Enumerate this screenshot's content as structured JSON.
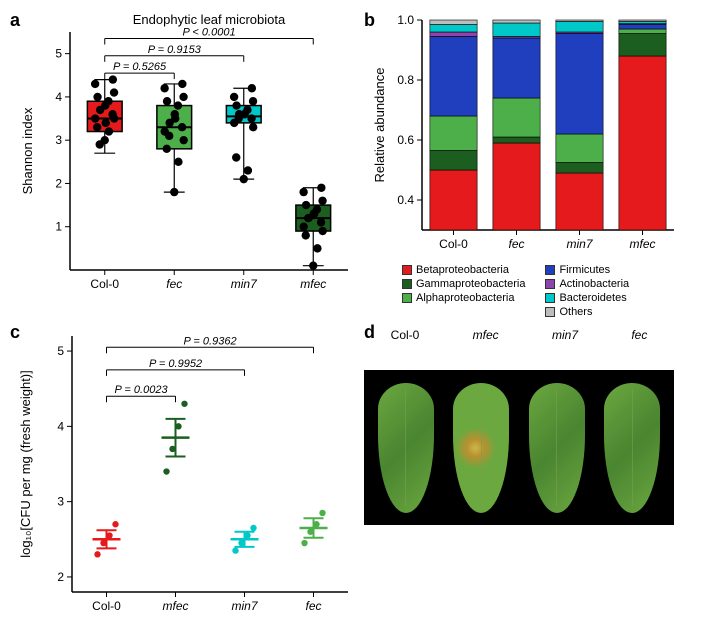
{
  "panel_a": {
    "label": "a",
    "title": "Endophytic leaf microbiota",
    "ylabel": "Shannon index",
    "ylim": [
      0,
      5.5
    ],
    "yticks": [
      1,
      2,
      3,
      4,
      5
    ],
    "categories": [
      "Col-0",
      "fec",
      "min7",
      "mfec"
    ],
    "italic_categories": [
      false,
      true,
      true,
      true
    ],
    "boxes": [
      {
        "q1": 3.2,
        "median": 3.5,
        "q3": 3.9,
        "wlow": 2.7,
        "whigh": 4.4,
        "fill": "#e41a1c"
      },
      {
        "q1": 2.8,
        "median": 3.3,
        "q3": 3.8,
        "wlow": 1.8,
        "whigh": 4.3,
        "fill": "#4daf4a"
      },
      {
        "q1": 3.4,
        "median": 3.55,
        "q3": 3.8,
        "wlow": 2.1,
        "whigh": 4.2,
        "fill": "#00c8c8"
      },
      {
        "q1": 0.9,
        "median": 1.2,
        "q3": 1.5,
        "wlow": 0.1,
        "whigh": 1.9,
        "fill": "#1b5e20"
      }
    ],
    "jitter": [
      [
        3.0,
        3.2,
        3.3,
        3.5,
        3.5,
        3.6,
        3.7,
        3.8,
        3.9,
        4.0,
        4.1,
        4.3,
        4.4,
        2.9,
        3.4
      ],
      [
        1.8,
        2.5,
        2.8,
        3.0,
        3.2,
        3.3,
        3.4,
        3.6,
        3.8,
        3.9,
        4.0,
        4.2,
        4.3,
        3.1,
        3.5
      ],
      [
        2.1,
        2.3,
        2.6,
        3.3,
        3.4,
        3.5,
        3.6,
        3.6,
        3.7,
        3.8,
        3.9,
        4.0,
        4.2,
        3.5,
        3.6
      ],
      [
        0.1,
        0.5,
        0.8,
        0.9,
        1.0,
        1.1,
        1.2,
        1.3,
        1.4,
        1.5,
        1.6,
        1.8,
        1.9,
        1.2,
        1.3
      ]
    ],
    "pvalues": [
      {
        "label": "P = 0.5265",
        "from": 0,
        "to": 1,
        "y": 4.55
      },
      {
        "label": "P = 0.9153",
        "from": 0,
        "to": 2,
        "y": 4.95
      },
      {
        "label": "P < 0.0001",
        "from": 0,
        "to": 3,
        "y": 5.35
      }
    ],
    "colors": {
      "axis": "#000000",
      "point": "#000000"
    }
  },
  "panel_b": {
    "label": "b",
    "ylabel": "Relative abundance",
    "ylim": [
      0.3,
      1.0
    ],
    "yticks": [
      0.4,
      0.6,
      0.8,
      1.0
    ],
    "categories": [
      "Col-0",
      "fec",
      "min7",
      "mfec"
    ],
    "italic_categories": [
      false,
      true,
      true,
      true
    ],
    "taxa_order": [
      "Betaproteobacteria",
      "Gammaproteobacteria",
      "Alphaproteobacteria",
      "Firmicutes",
      "Actinobacteria",
      "Bacteroidetes",
      "Others"
    ],
    "colors": {
      "Betaproteobacteria": "#e41a1c",
      "Gammaproteobacteria": "#1b5e20",
      "Alphaproteobacteria": "#4daf4a",
      "Firmicutes": "#1f3fbf",
      "Actinobacteria": "#8e44ad",
      "Bacteroidetes": "#00c8c8",
      "Others": "#bdbdbd"
    },
    "stacks": {
      "Col-0": {
        "Betaproteobacteria": 0.5,
        "Gammaproteobacteria": 0.065,
        "Alphaproteobacteria": 0.115,
        "Firmicutes": 0.265,
        "Actinobacteria": 0.015,
        "Bacteroidetes": 0.025,
        "Others": 0.015
      },
      "fec": {
        "Betaproteobacteria": 0.59,
        "Gammaproteobacteria": 0.02,
        "Alphaproteobacteria": 0.13,
        "Firmicutes": 0.2,
        "Actinobacteria": 0.005,
        "Bacteroidetes": 0.045,
        "Others": 0.01
      },
      "min7": {
        "Betaproteobacteria": 0.49,
        "Gammaproteobacteria": 0.035,
        "Alphaproteobacteria": 0.095,
        "Firmicutes": 0.335,
        "Actinobacteria": 0.005,
        "Bacteroidetes": 0.035,
        "Others": 0.005
      },
      "mfec": {
        "Betaproteobacteria": 0.88,
        "Gammaproteobacteria": 0.075,
        "Alphaproteobacteria": 0.015,
        "Firmicutes": 0.015,
        "Actinobacteria": 0.003,
        "Bacteroidetes": 0.007,
        "Others": 0.005
      }
    },
    "legend_left": [
      "Betaproteobacteria",
      "Gammaproteobacteria",
      "Alphaproteobacteria"
    ],
    "legend_right": [
      "Firmicutes",
      "Actinobacteria",
      "Bacteroidetes",
      "Others"
    ]
  },
  "panel_c": {
    "label": "c",
    "ylabel": "log₁₀[CFU per mg (fresh weight)]",
    "ylim": [
      1.8,
      5.2
    ],
    "yticks": [
      2,
      3,
      4,
      5
    ],
    "categories": [
      "Col-0",
      "mfec",
      "min7",
      "fec"
    ],
    "italic_categories": [
      false,
      true,
      true,
      true
    ],
    "series": [
      {
        "mean": 2.5,
        "sem": 0.12,
        "points": [
          2.3,
          2.45,
          2.55,
          2.7
        ],
        "color": "#e41a1c"
      },
      {
        "mean": 3.85,
        "sem": 0.25,
        "points": [
          3.4,
          3.7,
          4.0,
          4.3
        ],
        "color": "#1b5e20"
      },
      {
        "mean": 2.5,
        "sem": 0.1,
        "points": [
          2.35,
          2.45,
          2.55,
          2.65
        ],
        "color": "#00c8c8"
      },
      {
        "mean": 2.65,
        "sem": 0.13,
        "points": [
          2.45,
          2.6,
          2.7,
          2.85
        ],
        "color": "#4daf4a"
      }
    ],
    "pvalues": [
      {
        "label": "P = 0.0023",
        "from": 0,
        "to": 1,
        "y": 4.4
      },
      {
        "label": "P = 0.9952",
        "from": 0,
        "to": 2,
        "y": 4.75
      },
      {
        "label": "P = 0.9362",
        "from": 0,
        "to": 3,
        "y": 5.05
      }
    ]
  },
  "panel_d": {
    "label": "d",
    "categories": [
      "Col-0",
      "mfec",
      "min7",
      "fec"
    ],
    "italic_categories": [
      false,
      true,
      true,
      true
    ],
    "leaf_colors": {
      "healthy": "linear-gradient(135deg,#6ba840 0%,#4a8530 50%,#6ba840 100%)",
      "diseased": "radial-gradient(circle at 40% 50%, #c9b84a 0%, #b89030 12%, #6ba840 28%), radial-gradient(circle at 55% 65%, #c9b84a 0%, #a07828 10%, #6ba840 24%), linear-gradient(135deg,#6ba840 0%,#4a8530 50%,#6ba840 100%)"
    },
    "leaf_states": [
      "healthy",
      "diseased",
      "healthy",
      "healthy"
    ],
    "background": "#000000"
  }
}
